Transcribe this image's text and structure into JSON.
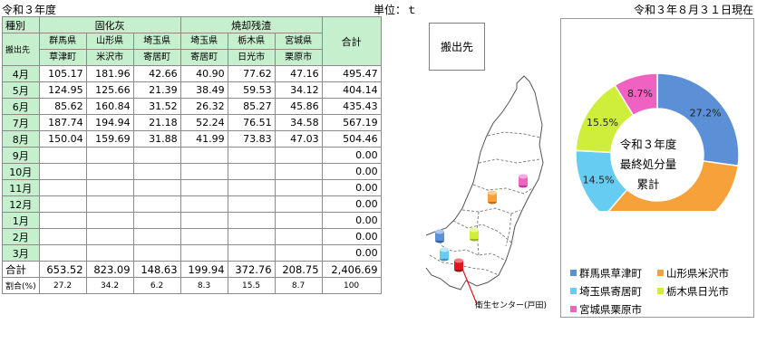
{
  "header": {
    "fiscal_year": "令和３年度",
    "unit_label": "単位：ｔ",
    "as_of": "令和３年８月３１日現在"
  },
  "table": {
    "type_label": "種別",
    "dest_label": "搬出先",
    "group_fly_ash": "固化灰",
    "group_incin": "焼却残渣",
    "total_col": "合計",
    "columns": [
      {
        "pref": "群馬県",
        "place": "草津町"
      },
      {
        "pref": "山形県",
        "place": "米沢市"
      },
      {
        "pref": "埼玉県",
        "place": "寄居町"
      },
      {
        "pref": "埼玉県",
        "place": "寄居町"
      },
      {
        "pref": "栃木県",
        "place": "日光市"
      },
      {
        "pref": "宮城県",
        "place": "栗原市"
      }
    ],
    "rows": [
      {
        "month": "4月",
        "values": [
          "105.17",
          "181.96",
          "42.66",
          "40.90",
          "77.62",
          "47.16"
        ],
        "total": "495.47"
      },
      {
        "month": "5月",
        "values": [
          "124.95",
          "125.66",
          "21.39",
          "38.49",
          "59.53",
          "34.12"
        ],
        "total": "404.14"
      },
      {
        "month": "6月",
        "values": [
          "85.62",
          "160.84",
          "31.52",
          "26.32",
          "85.27",
          "45.86"
        ],
        "total": "435.43"
      },
      {
        "month": "7月",
        "values": [
          "187.74",
          "194.94",
          "21.18",
          "52.24",
          "76.51",
          "34.58"
        ],
        "total": "567.19"
      },
      {
        "month": "8月",
        "values": [
          "150.04",
          "159.69",
          "31.88",
          "41.99",
          "73.83",
          "47.03"
        ],
        "total": "504.46"
      },
      {
        "month": "9月",
        "values": [
          "",
          "",
          "",
          "",
          "",
          ""
        ],
        "total": "0.00"
      },
      {
        "month": "10月",
        "values": [
          "",
          "",
          "",
          "",
          "",
          ""
        ],
        "total": "0.00"
      },
      {
        "month": "11月",
        "values": [
          "",
          "",
          "",
          "",
          "",
          ""
        ],
        "total": "0.00"
      },
      {
        "month": "12月",
        "values": [
          "",
          "",
          "",
          "",
          "",
          ""
        ],
        "total": "0.00"
      },
      {
        "month": "1月",
        "values": [
          "",
          "",
          "",
          "",
          "",
          ""
        ],
        "total": "0.00"
      },
      {
        "month": "2月",
        "values": [
          "",
          "",
          "",
          "",
          "",
          ""
        ],
        "total": "0.00"
      },
      {
        "month": "3月",
        "values": [
          "",
          "",
          "",
          "",
          "",
          ""
        ],
        "total": "0.00"
      }
    ],
    "sum_row": {
      "label": "合計",
      "values": [
        "653.52",
        "823.09",
        "148.63",
        "199.94",
        "372.76",
        "208.75"
      ],
      "total": "2,406.69"
    },
    "pct_row": {
      "label": "割合(%)",
      "values": [
        "27.2",
        "34.2",
        "6.2",
        "8.3",
        "15.5",
        "8.7"
      ],
      "total": "100"
    }
  },
  "map": {
    "dest_box_label": "搬出先",
    "center_label": "衛生センター(戸田)"
  },
  "chart_data": {
    "type": "pie",
    "donut": true,
    "center_lines": [
      "令和３年度",
      "最終処分量",
      "累計"
    ],
    "slices": [
      {
        "name": "群馬県草津町",
        "value": 27.2,
        "label": "27.2%",
        "color": "#5b8fd6"
      },
      {
        "name": "山形県米沢市",
        "value": 34.2,
        "label": "34.2%",
        "color": "#f7a13a"
      },
      {
        "name": "埼玉県寄居町",
        "value": 14.5,
        "label": "14.5%",
        "color": "#66ccf2"
      },
      {
        "name": "栃木県日光市",
        "value": 15.5,
        "label": "15.5%",
        "color": "#cfed3b"
      },
      {
        "name": "宮城県栗原市",
        "value": 8.7,
        "label": "8.7%",
        "color": "#f062c2"
      }
    ],
    "legend_position": "bottom"
  }
}
